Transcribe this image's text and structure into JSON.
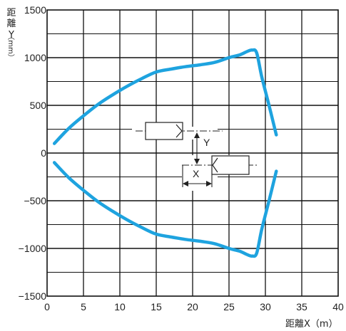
{
  "chart_data": {
    "type": "line",
    "xlabel": "距離X（m）",
    "ylabel_chars": [
      "距",
      "離",
      "Y",
      "（mm）"
    ],
    "xlim": [
      0,
      40
    ],
    "ylim": [
      -1500,
      1500
    ],
    "x_ticks": [
      0,
      5,
      10,
      15,
      20,
      25,
      30,
      35,
      40
    ],
    "y_ticks": [
      -1500,
      -1000,
      -500,
      0,
      500,
      1000,
      1500
    ],
    "grid": true,
    "series_color": "#1ea3df",
    "series": [
      {
        "values": [
          [
            1,
            100
          ],
          [
            3,
            260
          ],
          [
            5,
            390
          ],
          [
            7,
            510
          ],
          [
            9,
            610
          ],
          [
            11,
            700
          ],
          [
            13,
            780
          ],
          [
            15,
            850
          ],
          [
            17,
            880
          ],
          [
            19,
            905
          ],
          [
            21,
            925
          ],
          [
            23,
            950
          ],
          [
            25,
            1000
          ],
          [
            26.5,
            1030
          ],
          [
            27.5,
            1065
          ],
          [
            28.2,
            1080
          ],
          [
            28.8,
            1050
          ],
          [
            29.5,
            800
          ],
          [
            30.5,
            500
          ],
          [
            31.5,
            190
          ]
        ]
      },
      {
        "values": [
          [
            1,
            -100
          ],
          [
            3,
            -260
          ],
          [
            5,
            -390
          ],
          [
            7,
            -510
          ],
          [
            9,
            -610
          ],
          [
            11,
            -700
          ],
          [
            13,
            -780
          ],
          [
            15,
            -850
          ],
          [
            17,
            -880
          ],
          [
            19,
            -905
          ],
          [
            21,
            -925
          ],
          [
            23,
            -950
          ],
          [
            25,
            -1000
          ],
          [
            26.5,
            -1030
          ],
          [
            27.5,
            -1065
          ],
          [
            28.2,
            -1080
          ],
          [
            28.8,
            -1050
          ],
          [
            29.5,
            -800
          ],
          [
            30.5,
            -500
          ],
          [
            31.5,
            -190
          ]
        ]
      }
    ],
    "annotations": {
      "y_marker": "Y",
      "x_marker": "X"
    }
  }
}
